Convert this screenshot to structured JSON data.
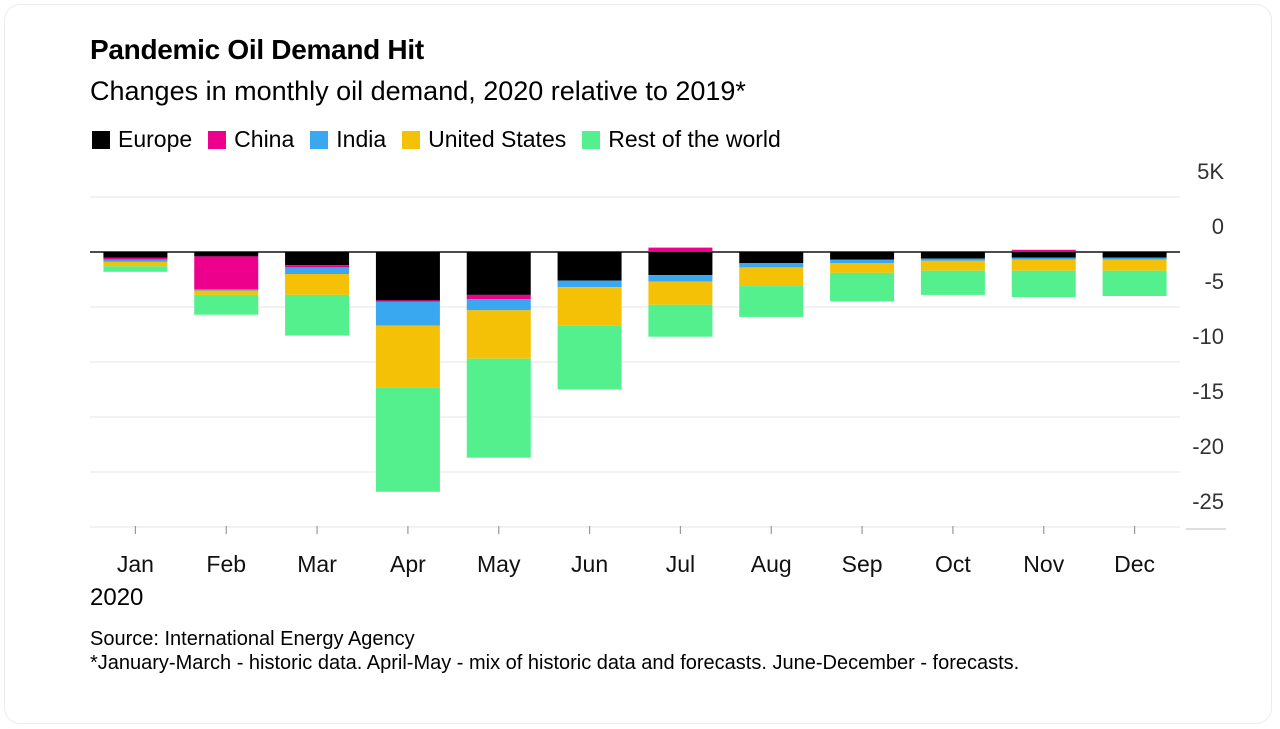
{
  "title": "Pandemic Oil Demand Hit",
  "subtitle": "Changes in monthly oil demand, 2020 relative to 2019*",
  "year_label": "2020",
  "source_line": "Source: International Energy Agency",
  "footnote": "*January-March - historic data. April-May - mix of historic data and forecasts. June-December - forecasts.",
  "chart_data": {
    "type": "bar",
    "stacked": true,
    "title": "Pandemic Oil Demand Hit",
    "subtitle": "Changes in monthly oil demand, 2020 relative to 2019*",
    "xlabel": "2020",
    "ylabel": "",
    "ylim": [
      -25,
      5
    ],
    "yticks": [
      {
        "value": 5,
        "label": "5K"
      },
      {
        "value": 0,
        "label": "0"
      },
      {
        "value": -5,
        "label": "-5"
      },
      {
        "value": -10,
        "label": "-10"
      },
      {
        "value": -15,
        "label": "-15"
      },
      {
        "value": -20,
        "label": "-20"
      },
      {
        "value": -25,
        "label": "-25"
      }
    ],
    "categories": [
      "Jan",
      "Feb",
      "Mar",
      "Apr",
      "May",
      "Jun",
      "Jul",
      "Aug",
      "Sep",
      "Oct",
      "Nov",
      "Dec"
    ],
    "legend_position": "top-left",
    "series": [
      {
        "name": "Europe",
        "color": "#000000",
        "values": [
          -0.5,
          -0.4,
          -1.2,
          -4.4,
          -3.9,
          -2.6,
          -2.1,
          -1.0,
          -0.7,
          -0.6,
          -0.5,
          -0.5
        ]
      },
      {
        "name": "China",
        "color": "#ec008c",
        "values": [
          -0.2,
          -3.0,
          -0.2,
          -0.1,
          -0.4,
          0.0,
          0.4,
          0.0,
          0.0,
          0.0,
          0.2,
          0.0
        ]
      },
      {
        "name": "India",
        "color": "#3aa8f0",
        "values": [
          -0.2,
          -0.1,
          -0.6,
          -2.2,
          -1.0,
          -0.6,
          -0.6,
          -0.4,
          -0.3,
          -0.2,
          -0.2,
          -0.2
        ]
      },
      {
        "name": "United States",
        "color": "#f5c106",
        "values": [
          -0.4,
          -0.4,
          -1.9,
          -5.6,
          -4.4,
          -3.5,
          -2.1,
          -1.7,
          -0.9,
          -0.9,
          -1.0,
          -1.0
        ]
      },
      {
        "name": "Rest of the world",
        "color": "#54f08e",
        "values": [
          -0.5,
          -1.8,
          -3.7,
          -9.5,
          -9.0,
          -5.8,
          -2.9,
          -2.8,
          -2.6,
          -2.2,
          -2.4,
          -2.3
        ]
      }
    ]
  }
}
